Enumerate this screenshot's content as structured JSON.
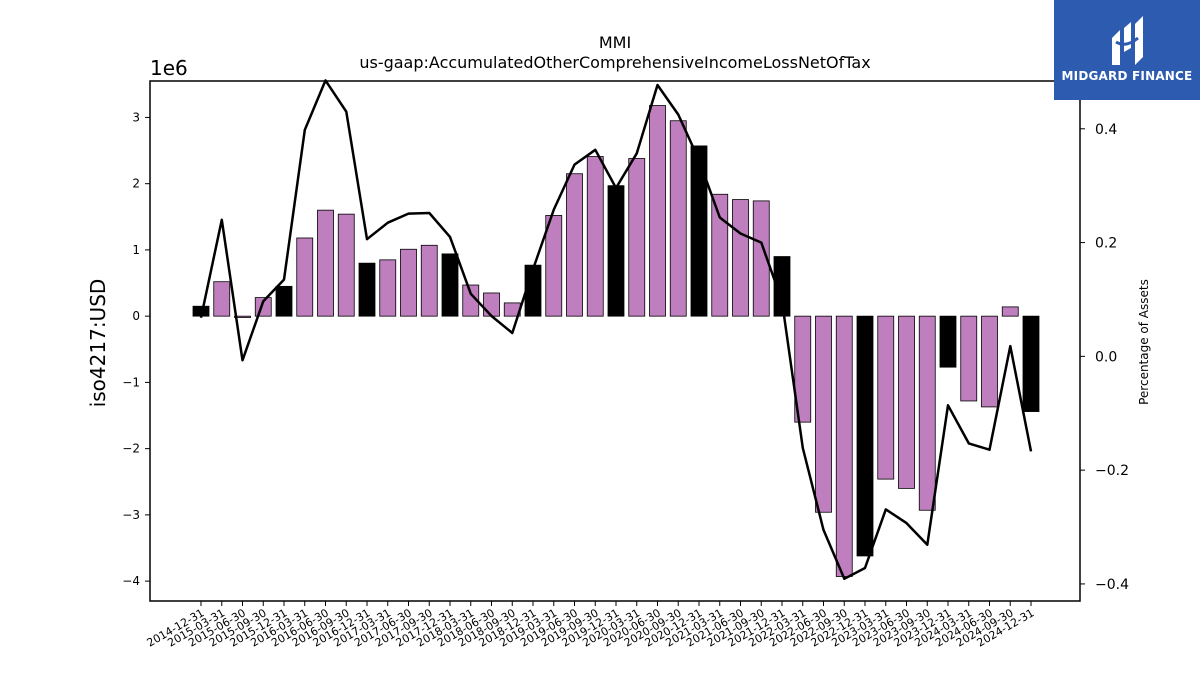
{
  "chart_data": {
    "type": "bar+line",
    "title": "MMI",
    "subtitle": "us-gaap:AccumulatedOtherComprehensiveIncomeLossNetOfTax",
    "ylabel": "iso4217:USD",
    "y2label": "Percentage of Assets",
    "y_scale_label": "1e6",
    "ylim": [
      -4.3,
      3.55
    ],
    "y2lim": [
      -0.43,
      0.484
    ],
    "yticks": [
      -4,
      -3,
      -2,
      -1,
      0,
      1,
      2,
      3
    ],
    "y2ticks": [
      -0.4,
      -0.2,
      0.0,
      0.2,
      0.4
    ],
    "grid": false,
    "categories": [
      "2014-12-31",
      "2015-03-31",
      "2015-06-30",
      "2015-09-30",
      "2015-12-31",
      "2016-03-31",
      "2016-06-30",
      "2016-09-30",
      "2016-12-31",
      "2017-03-31",
      "2017-06-30",
      "2017-09-30",
      "2017-12-31",
      "2018-03-31",
      "2018-06-30",
      "2018-09-30",
      "2018-12-31",
      "2019-03-31",
      "2019-06-30",
      "2019-09-30",
      "2019-12-31",
      "2020-03-31",
      "2020-06-30",
      "2020-09-30",
      "2020-12-31",
      "2021-03-31",
      "2021-06-30",
      "2021-09-30",
      "2021-12-31",
      "2022-03-31",
      "2022-06-30",
      "2022-09-30",
      "2022-12-31",
      "2023-03-31",
      "2023-06-30",
      "2023-09-30",
      "2023-12-31",
      "2024-03-31",
      "2024-06-30",
      "2024-09-30",
      "2024-12-31"
    ],
    "series": [
      {
        "kind": "bar",
        "values": [
          0.15,
          0.52,
          -0.02,
          0.28,
          0.45,
          1.18,
          1.6,
          1.54,
          0.8,
          0.85,
          1.01,
          1.07,
          0.94,
          0.47,
          0.35,
          0.2,
          0.77,
          1.52,
          2.15,
          2.41,
          1.97,
          2.38,
          3.18,
          2.95,
          2.57,
          1.84,
          1.76,
          1.74,
          0.9,
          -1.6,
          -2.96,
          -3.93,
          -3.62,
          -2.46,
          -2.6,
          -2.93,
          -0.77,
          -1.28,
          -1.37,
          0.14,
          -1.44
        ],
        "bar_color": [
          "#000000",
          "#bf7fbf",
          "#bf7fbf",
          "#bf7fbf",
          "#000000",
          "#bf7fbf",
          "#bf7fbf",
          "#bf7fbf",
          "#000000",
          "#bf7fbf",
          "#bf7fbf",
          "#bf7fbf",
          "#000000",
          "#bf7fbf",
          "#bf7fbf",
          "#bf7fbf",
          "#000000",
          "#bf7fbf",
          "#bf7fbf",
          "#bf7fbf",
          "#000000",
          "#bf7fbf",
          "#bf7fbf",
          "#bf7fbf",
          "#000000",
          "#bf7fbf",
          "#bf7fbf",
          "#bf7fbf",
          "#000000",
          "#bf7fbf",
          "#bf7fbf",
          "#bf7fbf",
          "#000000",
          "#bf7fbf",
          "#bf7fbf",
          "#bf7fbf",
          "#000000",
          "#bf7fbf",
          "#bf7fbf",
          "#bf7fbf",
          "#000000"
        ]
      },
      {
        "kind": "line",
        "axis": "y2",
        "color": "#000000",
        "values": [
          0.068,
          0.24,
          -0.007,
          0.097,
          0.135,
          0.398,
          0.485,
          0.43,
          0.206,
          0.235,
          0.251,
          0.252,
          0.21,
          0.11,
          0.071,
          0.041,
          0.153,
          0.258,
          0.337,
          0.363,
          0.296,
          0.357,
          0.477,
          0.425,
          0.345,
          0.244,
          0.216,
          0.2,
          0.097,
          -0.161,
          -0.305,
          -0.391,
          -0.372,
          -0.269,
          -0.293,
          -0.331,
          -0.086,
          -0.153,
          -0.164,
          0.018,
          -0.167
        ]
      }
    ]
  },
  "logo": {
    "text": "MIDGARD FINANCE",
    "bg_color": "#2d5bb0"
  }
}
